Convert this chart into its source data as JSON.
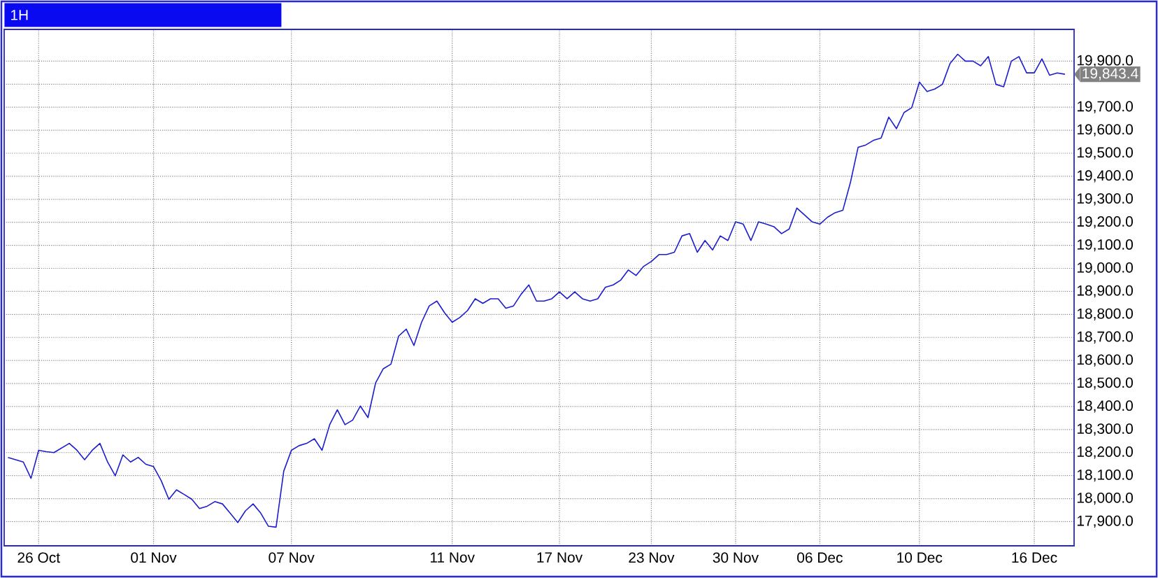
{
  "chart_data": {
    "type": "line",
    "title": "1H",
    "categories": [
      null,
      null,
      null,
      null,
      "26 Oct",
      null,
      null,
      null,
      null,
      null,
      null,
      null,
      null,
      null,
      null,
      null,
      null,
      null,
      null,
      "01 Nov",
      null,
      null,
      null,
      null,
      null,
      null,
      null,
      null,
      null,
      null,
      null,
      null,
      null,
      null,
      null,
      null,
      null,
      "07 Nov",
      null,
      null,
      null,
      null,
      null,
      null,
      null,
      null,
      null,
      null,
      null,
      null,
      null,
      null,
      null,
      null,
      null,
      null,
      null,
      null,
      "11 Nov",
      null,
      null,
      null,
      null,
      null,
      null,
      null,
      null,
      null,
      null,
      null,
      null,
      null,
      "17 Nov",
      null,
      null,
      null,
      null,
      null,
      null,
      null,
      null,
      null,
      null,
      null,
      "23 Nov",
      null,
      null,
      null,
      null,
      null,
      null,
      null,
      null,
      null,
      null,
      "30 Nov",
      null,
      null,
      null,
      null,
      null,
      null,
      null,
      null,
      null,
      null,
      "06 Dec",
      null,
      null,
      null,
      null,
      null,
      null,
      null,
      null,
      null,
      null,
      null,
      null,
      "10 Dec",
      null,
      null,
      null,
      null,
      null,
      null,
      null,
      null,
      null,
      null,
      null,
      null,
      null,
      null,
      "16 Dec",
      null,
      null,
      null,
      null
    ],
    "series": [
      {
        "color": "#1c1cd0",
        "values": [
          18179,
          18169,
          18159,
          18088,
          18210,
          18204,
          18200,
          18220,
          18240,
          18210,
          18169,
          18210,
          18240,
          18159,
          18099,
          18190,
          18159,
          18179,
          18149,
          18139,
          18078,
          17997,
          18038,
          18018,
          17997,
          17957,
          17967,
          17987,
          17977,
          17937,
          17896,
          17947,
          17977,
          17937,
          17880,
          17876,
          18119,
          18210,
          18230,
          18240,
          18260,
          18210,
          18321,
          18386,
          18321,
          18341,
          18402,
          18352,
          18503,
          18564,
          18584,
          18706,
          18736,
          18665,
          18766,
          18837,
          18858,
          18807,
          18766,
          18787,
          18817,
          18868,
          18848,
          18868,
          18868,
          18827,
          18837,
          18888,
          18928,
          18858,
          18858,
          18868,
          18898,
          18868,
          18898,
          18868,
          18858,
          18868,
          18918,
          18928,
          18949,
          18993,
          18969,
          19009,
          19030,
          19060,
          19060,
          19070,
          19141,
          19151,
          19070,
          19121,
          19080,
          19141,
          19121,
          19202,
          19192,
          19121,
          19202,
          19192,
          19181,
          19151,
          19171,
          19262,
          19232,
          19202,
          19192,
          19222,
          19242,
          19252,
          19374,
          19526,
          19536,
          19556,
          19566,
          19657,
          19607,
          19677,
          19698,
          19809,
          19768,
          19779,
          19799,
          19890,
          19930,
          19900,
          19900,
          19880,
          19920,
          19799,
          19789,
          19900,
          19920,
          19849,
          19849,
          19910,
          19839,
          19849,
          19843
        ]
      }
    ],
    "ylim": [
      17795,
      20038
    ],
    "yticks": [
      {
        "value": 17900,
        "label": "17,900.0"
      },
      {
        "value": 18000,
        "label": "18,000.0"
      },
      {
        "value": 18100,
        "label": "18,100.0"
      },
      {
        "value": 18200,
        "label": "18,200.0"
      },
      {
        "value": 18300,
        "label": "18,300.0"
      },
      {
        "value": 18400,
        "label": "18,400.0"
      },
      {
        "value": 18500,
        "label": "18,500.0"
      },
      {
        "value": 18600,
        "label": "18,600.0"
      },
      {
        "value": 18700,
        "label": "18,700.0"
      },
      {
        "value": 18800,
        "label": "18,800.0"
      },
      {
        "value": 18900,
        "label": "18,900.0"
      },
      {
        "value": 19000,
        "label": "19,000.0"
      },
      {
        "value": 19100,
        "label": "19,100.0"
      },
      {
        "value": 19200,
        "label": "19,200.0"
      },
      {
        "value": 19300,
        "label": "19,300.0"
      },
      {
        "value": 19400,
        "label": "19,400.0"
      },
      {
        "value": 19500,
        "label": "19,500.0"
      },
      {
        "value": 19600,
        "label": "19,600.0"
      },
      {
        "value": 19700,
        "label": "19,700.0"
      },
      {
        "value": 19800,
        "label": null
      },
      {
        "value": 19900,
        "label": "19,900.0"
      }
    ],
    "annotations": [
      "19,843.4"
    ],
    "grid": true
  }
}
